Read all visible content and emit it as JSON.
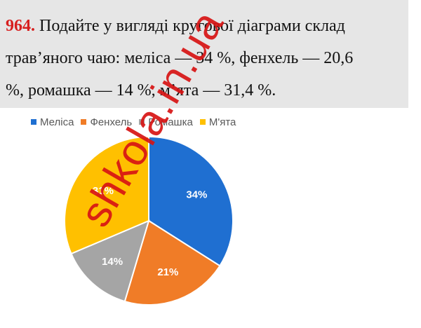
{
  "problem": {
    "number": "964.",
    "line1": "Подайте у вигляді кругової діаграми склад",
    "line2": "трав’яного чаю: меліса — 34 %, фенхель — 20,6",
    "line3": "%, ромашка — 14 %, м’ята — 31,4 %."
  },
  "chart_data": {
    "type": "pie",
    "title": "",
    "legend_position": "top-left",
    "start_angle_deg": 0,
    "direction": "clockwise",
    "categories": [
      "Меліса",
      "Фенхель",
      "Ромашка",
      "М'ята"
    ],
    "values": [
      34,
      20.6,
      14,
      31.4
    ],
    "data_labels": [
      "34%",
      "21%",
      "14%",
      "31%"
    ],
    "colors": [
      "#1f6fd1",
      "#f07c27",
      "#a5a5a5",
      "#ffc000"
    ]
  },
  "watermark": {
    "text": "shkola.in.ua"
  }
}
